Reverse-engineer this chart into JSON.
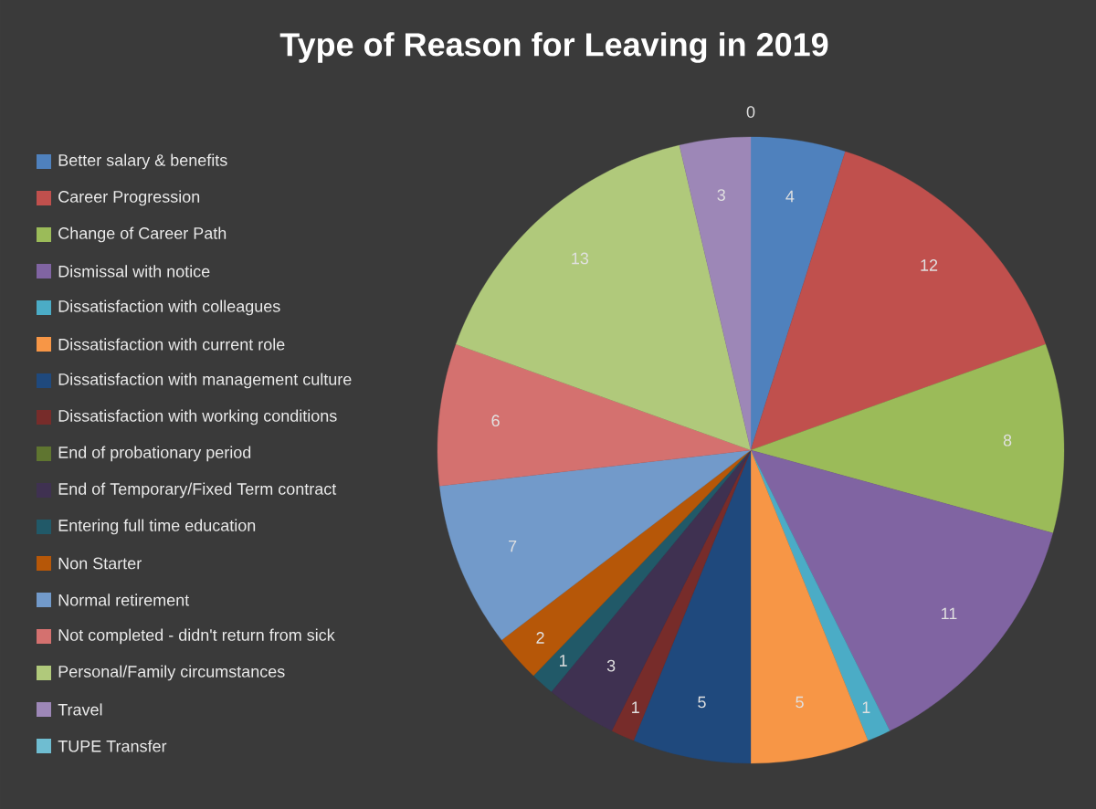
{
  "chart_data": {
    "type": "pie",
    "title": "Type of Reason for Leaving in 2019",
    "categories": [
      "Better salary & benefits",
      "Career Progression",
      "Change of Career Path",
      "Dismissal with notice",
      "Dissatisfaction with colleagues",
      "Dissatisfaction with current role",
      "Dissatisfaction with management culture",
      "Dissatisfaction with working conditions",
      "End of probationary period",
      "End of Temporary/Fixed Term contract",
      "Entering full time education",
      "Non Starter",
      "Normal retirement",
      "Not completed - didn't return from sick",
      "Personal/Family circumstances",
      "Travel",
      "TUPE Transfer"
    ],
    "values": [
      4,
      12,
      8,
      11,
      1,
      5,
      5,
      1,
      0,
      3,
      1,
      2,
      7,
      6,
      13,
      3,
      0
    ],
    "value_labels": [
      "4",
      "12",
      "8",
      "11",
      "1",
      "5",
      "5",
      "1",
      null,
      "3",
      "1",
      "2",
      "7",
      "6",
      "13",
      "3",
      "0"
    ],
    "colors": [
      "#4f81bd",
      "#c0504d",
      "#9bbb59",
      "#8064a2",
      "#4bacc6",
      "#f79646",
      "#1f497d",
      "#772c2a",
      "#5f7530",
      "#3f3151",
      "#215968",
      "#b65708",
      "#729aca",
      "#d4716f",
      "#b0c97b",
      "#9d87b7",
      "#6fbdd1"
    ],
    "legend": "left"
  }
}
